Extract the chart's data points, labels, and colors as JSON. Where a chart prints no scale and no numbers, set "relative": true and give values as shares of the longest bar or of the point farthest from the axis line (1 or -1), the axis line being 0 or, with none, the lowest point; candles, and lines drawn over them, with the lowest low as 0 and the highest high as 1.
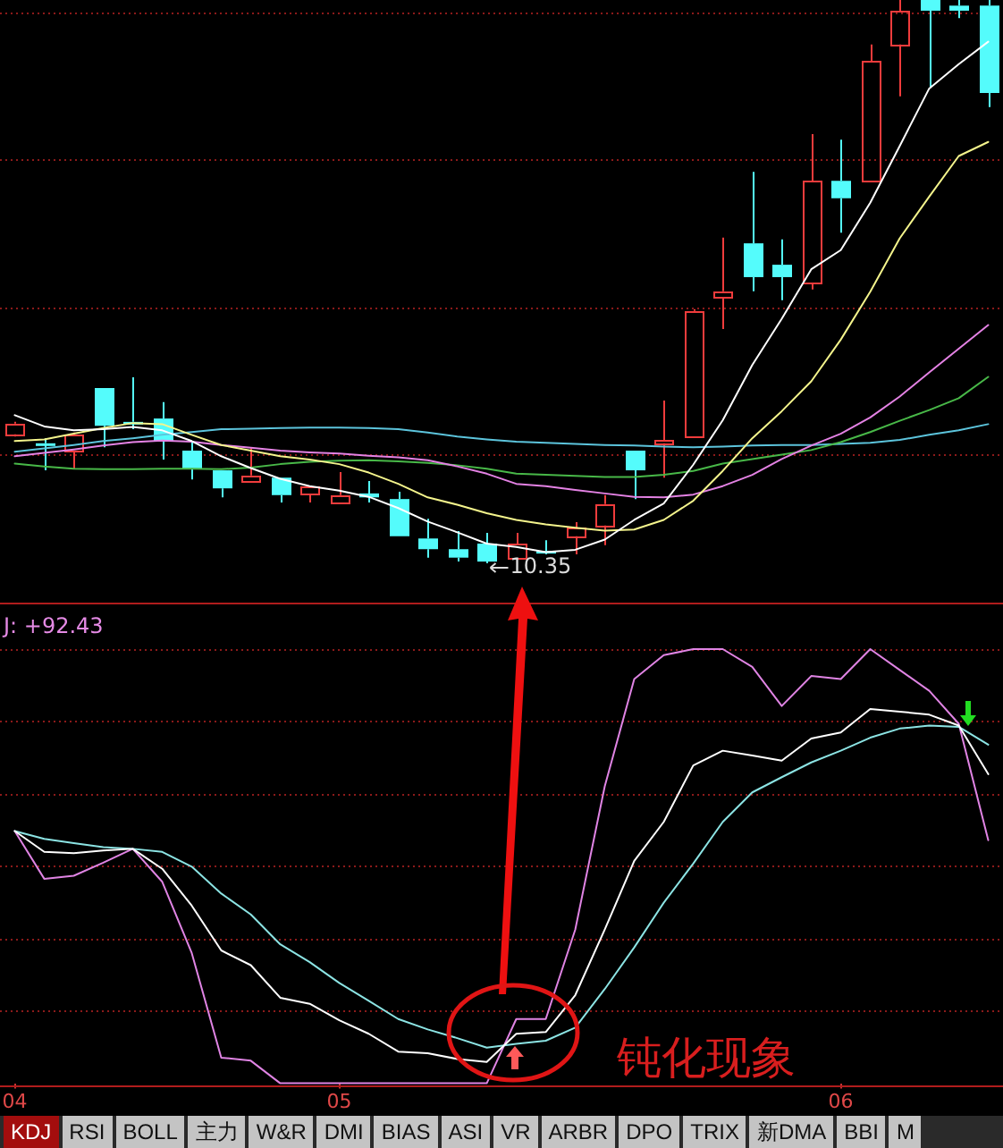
{
  "chart_data": [
    {
      "type": "candlestick",
      "relative": true,
      "tick_labels": false,
      "categories": [
        "04",
        null,
        null,
        null,
        null,
        null,
        null,
        null,
        null,
        null,
        null,
        "05",
        null,
        null,
        null,
        null,
        null,
        null,
        null,
        null,
        null,
        null,
        null,
        null,
        null,
        null,
        null,
        null,
        "06",
        null,
        null,
        null,
        null,
        null
      ],
      "ohlc": [
        [
          0.229,
          0.251,
          0.225,
          0.248
        ],
        [
          0.213,
          0.222,
          0.165,
          0.21
        ],
        [
          0.2,
          0.232,
          0.168,
          0.229
        ],
        [
          0.311,
          0.311,
          0.206,
          0.244
        ],
        [
          0.251,
          0.33,
          0.238,
          0.248
        ],
        [
          0.257,
          0.286,
          0.184,
          0.216
        ],
        [
          0.2,
          0.216,
          0.149,
          0.168
        ],
        [
          0.165,
          0.165,
          0.117,
          0.133
        ],
        [
          0.146,
          0.206,
          0.146,
          0.156
        ],
        [
          0.152,
          0.152,
          0.108,
          0.121
        ],
        [
          0.124,
          0.137,
          0.108,
          0.137
        ],
        [
          0.108,
          0.162,
          0.108,
          0.121
        ],
        [
          0.124,
          0.146,
          0.108,
          0.117
        ],
        [
          0.114,
          0.127,
          0.048,
          0.048
        ],
        [
          0.044,
          0.079,
          0.01,
          0.025
        ],
        [
          0.025,
          0.057,
          0.003,
          0.01
        ],
        [
          0.035,
          0.054,
          0,
          0.003
        ],
        [
          0.01,
          0.054,
          0.01,
          0.035
        ],
        [
          0.022,
          0.041,
          0.016,
          0.019
        ],
        [
          0.048,
          0.073,
          0.016,
          0.063
        ],
        [
          0.067,
          0.121,
          0.032,
          0.105
        ],
        [
          0.2,
          0.2,
          0.114,
          0.165
        ],
        [
          0.213,
          0.289,
          0.152,
          0.219
        ],
        [
          0.225,
          0.451,
          0.225,
          0.448
        ],
        [
          0.473,
          0.578,
          0.416,
          0.483
        ],
        [
          0.568,
          0.695,
          0.483,
          0.508
        ],
        [
          0.53,
          0.575,
          0.467,
          0.508
        ],
        [
          0.498,
          0.762,
          0.486,
          0.679
        ],
        [
          0.679,
          0.752,
          0.587,
          0.648
        ],
        [
          0.679,
          0.921,
          0.679,
          0.892
        ],
        [
          0.921,
          1,
          0.829,
          0.981
        ],
        [
          1,
          1,
          0.844,
          0.981
        ],
        [
          0.99,
          1,
          0.968,
          0.981
        ],
        [
          0.99,
          1,
          0.81,
          0.835
        ]
      ],
      "colors": [
        "#f03c3c",
        "#54fcfc",
        "#f03c3c",
        "#54fcfc",
        "#54fcfc",
        "#54fcfc",
        "#54fcfc",
        "#54fcfc",
        "#f03c3c",
        "#54fcfc",
        "#f03c3c",
        "#f03c3c",
        "#54fcfc",
        "#54fcfc",
        "#54fcfc",
        "#54fcfc",
        "#54fcfc",
        "#f03c3c",
        "#54fcfc",
        "#f03c3c",
        "#f03c3c",
        "#54fcfc",
        "#f03c3c",
        "#f03c3c",
        "#f03c3c",
        "#54fcfc",
        "#54fcfc",
        "#f03c3c",
        "#54fcfc",
        "#f03c3c",
        "#f03c3c",
        "#54fcfc",
        "#54fcfc",
        "#54fcfc"
      ],
      "series": [
        {
          "type": "line",
          "color": "#ffffff",
          "values": [
            0.263,
            0.243,
            0.236,
            0.238,
            0.242,
            0.236,
            0.217,
            0.19,
            0.169,
            0.15,
            0.137,
            0.129,
            0.118,
            0.098,
            0.074,
            0.055,
            0.035,
            0.029,
            0.02,
            0.024,
            0.042,
            0.077,
            0.106,
            0.175,
            0.254,
            0.352,
            0.434,
            0.522,
            0.556,
            0.64,
            0.741,
            0.843,
            0.886,
            0.926
          ]
        },
        {
          "type": "line",
          "color": "#f4f48c",
          "values": [
            0.217,
            0.22,
            0.23,
            0.24,
            0.249,
            0.247,
            0.228,
            0.21,
            0.2,
            0.19,
            0.184,
            0.176,
            0.161,
            0.141,
            0.117,
            0.104,
            0.089,
            0.077,
            0.069,
            0.063,
            0.058,
            0.06,
            0.077,
            0.111,
            0.164,
            0.222,
            0.27,
            0.323,
            0.397,
            0.482,
            0.577,
            0.651,
            0.723,
            0.748
          ]
        },
        {
          "type": "line",
          "color": "#e482e4",
          "values": [
            0.19,
            0.196,
            0.202,
            0.209,
            0.215,
            0.218,
            0.216,
            0.21,
            0.205,
            0.2,
            0.197,
            0.195,
            0.191,
            0.188,
            0.183,
            0.172,
            0.159,
            0.141,
            0.137,
            0.13,
            0.124,
            0.118,
            0.117,
            0.122,
            0.137,
            0.157,
            0.185,
            0.209,
            0.23,
            0.259,
            0.296,
            0.339,
            0.381,
            0.423
          ]
        },
        {
          "type": "line",
          "color": "#48b848",
          "values": [
            0.177,
            0.172,
            0.168,
            0.167,
            0.167,
            0.168,
            0.168,
            0.167,
            0.17,
            0.176,
            0.18,
            0.182,
            0.183,
            0.181,
            0.178,
            0.174,
            0.168,
            0.159,
            0.157,
            0.155,
            0.153,
            0.153,
            0.157,
            0.164,
            0.177,
            0.185,
            0.193,
            0.201,
            0.215,
            0.233,
            0.253,
            0.272,
            0.293,
            0.331
          ]
        },
        {
          "type": "line",
          "color": "#5cc4dc",
          "values": [
            0.198,
            0.204,
            0.21,
            0.217,
            0.222,
            0.228,
            0.233,
            0.238,
            0.239,
            0.24,
            0.241,
            0.241,
            0.24,
            0.238,
            0.232,
            0.225,
            0.22,
            0.216,
            0.214,
            0.212,
            0.21,
            0.209,
            0.207,
            0.206,
            0.207,
            0.209,
            0.21,
            0.21,
            0.212,
            0.214,
            0.219,
            0.228,
            0.236,
            0.247
          ]
        }
      ],
      "ref_lines": [
        {
          "axis": "y",
          "value": 0.189,
          "color": "#8c1a1a",
          "line_style": "dotted"
        },
        {
          "axis": "y",
          "value": 0.451,
          "color": "#8c1a1a",
          "line_style": "dotted"
        },
        {
          "axis": "y",
          "value": 0.713,
          "color": "#8c1a1a",
          "line_style": "dotted"
        },
        {
          "axis": "y",
          "value": 0.975,
          "color": "#8c1a1a",
          "line_style": "dotted"
        }
      ],
      "annotations": [
        "10.35"
      ]
    },
    {
      "type": "line",
      "relative": true,
      "tick_labels": "x",
      "categories": [
        "04",
        null,
        null,
        null,
        null,
        null,
        null,
        null,
        null,
        null,
        null,
        "05",
        null,
        null,
        null,
        null,
        null,
        null,
        null,
        null,
        null,
        null,
        null,
        null,
        null,
        null,
        null,
        null,
        "06",
        null,
        null,
        null,
        null,
        null
      ],
      "series": [
        {
          "color": "#ffffff",
          "values": [
            0.581,
            0.533,
            0.53,
            0.536,
            0.54,
            0.494,
            0.409,
            0.306,
            0.272,
            0.197,
            0.183,
            0.145,
            0.114,
            0.073,
            0.069,
            0.056,
            0.049,
            0.114,
            0.118,
            0.203,
            0.354,
            0.512,
            0.602,
            0.732,
            0.766,
            0.755,
            0.743,
            0.794,
            0.808,
            0.862,
            0.856,
            0.849,
            0.824,
            0.712
          ]
        },
        {
          "color": "#8ce4e4",
          "values": [
            0.581,
            0.563,
            0.553,
            0.544,
            0.54,
            0.533,
            0.499,
            0.437,
            0.389,
            0.32,
            0.279,
            0.231,
            0.19,
            0.148,
            0.124,
            0.104,
            0.082,
            0.091,
            0.098,
            0.128,
            0.217,
            0.313,
            0.416,
            0.506,
            0.602,
            0.67,
            0.705,
            0.739,
            0.766,
            0.796,
            0.817,
            0.824,
            0.821,
            0.78
          ]
        },
        {
          "color": "#e084e4",
          "values": [
            0.581,
            0.471,
            0.478,
            0.508,
            0.54,
            0.464,
            0.3,
            0.059,
            0.052,
            0,
            0,
            0,
            0,
            0,
            0,
            0,
            0,
            0.148,
            0.148,
            0.354,
            0.684,
            0.931,
            0.986,
            1,
            1,
            0.959,
            0.869,
            0.938,
            0.931,
            1,
            0.952,
            0.904,
            0.828,
            0.56
          ]
        }
      ],
      "ref_lines": [
        {
          "axis": "y",
          "value": 0.164,
          "color": "#8c1a1a",
          "line_style": "dotted"
        },
        {
          "axis": "y",
          "value": 0.33,
          "color": "#8c1a1a",
          "line_style": "dotted"
        },
        {
          "axis": "y",
          "value": 0.497,
          "color": "#8c1a1a",
          "line_style": "dotted"
        },
        {
          "axis": "y",
          "value": 0.663,
          "color": "#8c1a1a",
          "line_style": "dotted"
        },
        {
          "axis": "y",
          "value": 0.83,
          "color": "#8c1a1a",
          "line_style": "dotted"
        },
        {
          "axis": "y",
          "value": 0.997,
          "color": "#8c1a1a",
          "line_style": "dotted"
        }
      ],
      "annotations": [
        "J: +92.43",
        "钝化现象"
      ]
    },
    {
      "type": "other",
      "annotations": [
        "KDJ",
        "RSI",
        "BOLL",
        "主力",
        "W&R",
        "DMI",
        "BIAS",
        "ASI",
        "VR",
        "ARBR",
        "DPO",
        "TRIX",
        "新DMA",
        "BBI",
        "M"
      ]
    }
  ]
}
